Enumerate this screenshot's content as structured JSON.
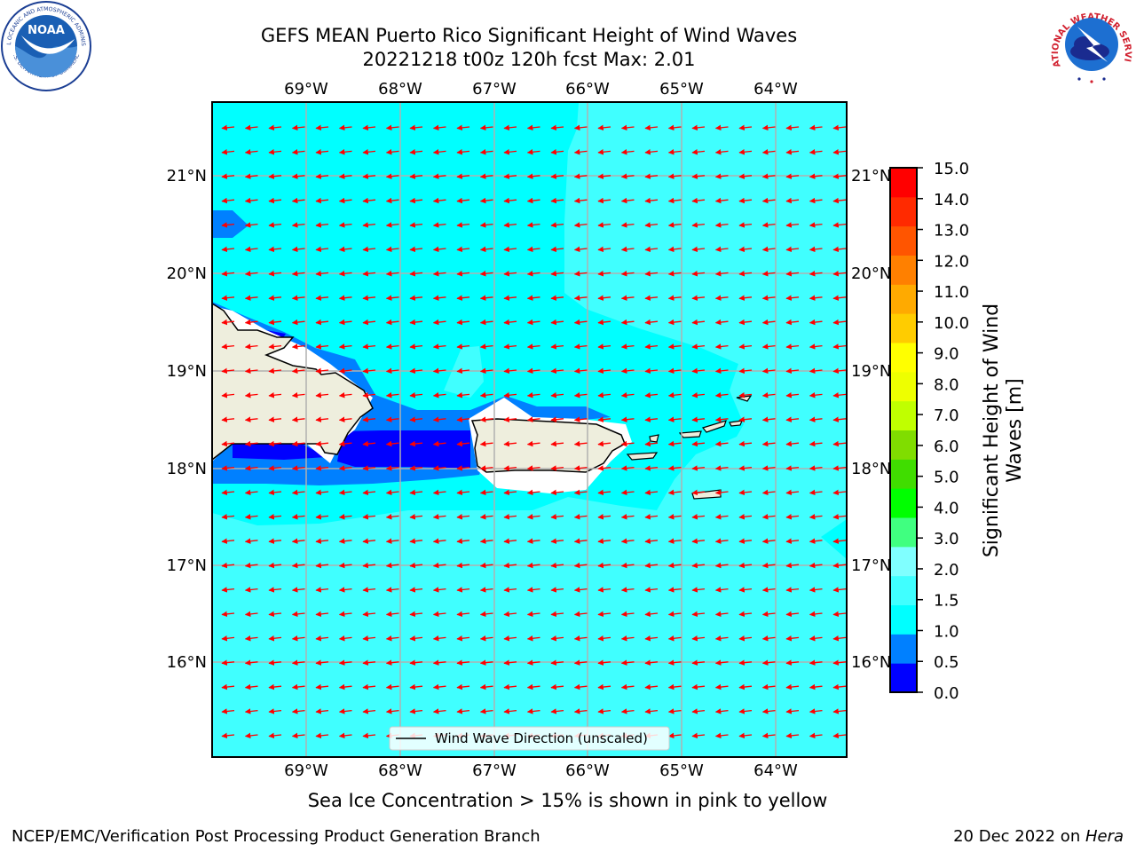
{
  "title": {
    "line1": "GEFS MEAN Puerto Rico Significant Height of Wind Waves",
    "line2": "20221218 t00z 120h fcst   Max: 2.01"
  },
  "logos": {
    "noaa_text": "NOAA",
    "noaa_ring_top": "NATIONAL OCEANIC AND ATMOSPHERIC ADMINISTRATION",
    "noaa_ring_bottom": "U.S. DEPARTMENT OF COMMERCE",
    "nws_ring": "NATIONAL WEATHER SERVICE"
  },
  "map": {
    "top_lon_labels": [
      "69°W",
      "68°W",
      "67°W",
      "66°W",
      "65°W",
      "64°W"
    ],
    "bottom_lon_labels": [
      "69°W",
      "68°W",
      "67°W",
      "66°W",
      "65°W",
      "64°W"
    ],
    "left_lat_labels": [
      "21°N",
      "20°N",
      "19°N",
      "18°N",
      "17°N",
      "16°N"
    ],
    "right_lat_labels": [
      "21°N",
      "20°N",
      "19°N",
      "18°N",
      "17°N",
      "16°N"
    ],
    "legend_label": "Wind Wave Direction (unscaled)",
    "colors": {
      "deep_blue": "#0000ff",
      "mid_blue": "#0080ff",
      "cyan": "#00ffff",
      "light_cyan": "#40ffff",
      "pale_cyan": "#80ffff",
      "land": "#eeeedd",
      "arrow": "#ff0000"
    }
  },
  "colorbar": {
    "label_line1": "Significant Height of Wind",
    "label_line2": "Waves [m]",
    "ticks": [
      "15.0",
      "14.0",
      "13.0",
      "12.0",
      "11.0",
      "10.0",
      "9.0",
      "8.0",
      "7.0",
      "6.0",
      "5.0",
      "4.0",
      "3.0",
      "2.0",
      "1.5",
      "1.0",
      "0.5",
      "0.0"
    ],
    "bands_bottom_to_top": [
      "#0000ff",
      "#0080ff",
      "#00ffff",
      "#40ffff",
      "#80ffff",
      "#40ff80",
      "#00ff00",
      "#40dd00",
      "#80dd00",
      "#c0ff00",
      "#eeff00",
      "#ffff00",
      "#ffcc00",
      "#ffaa00",
      "#ff8000",
      "#ff5500",
      "#ff2a00",
      "#ff0000"
    ]
  },
  "caption": "Sea Ice Concentration > 15% is shown in pink to yellow",
  "footer": {
    "left": "NCEP/EMC/Verification Post Processing Product Generation Branch",
    "right_prefix": "20 Dec 2022 on ",
    "right_host": "Hera"
  }
}
